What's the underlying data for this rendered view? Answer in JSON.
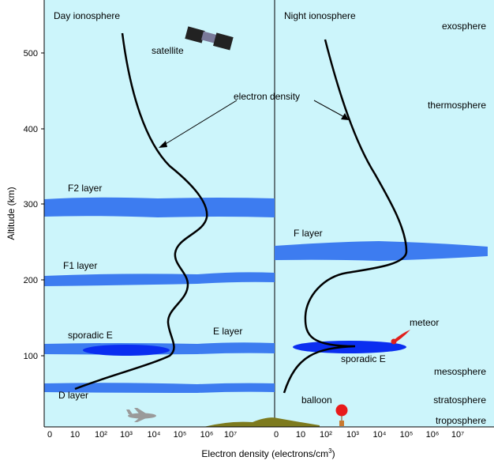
{
  "panels": {
    "day_title": "Day ionosphere",
    "night_title": "Night ionosphere"
  },
  "y_axis": {
    "label": "Altitude (km)",
    "ticks": [
      "500",
      "400",
      "300",
      "200",
      "100"
    ]
  },
  "x_axis": {
    "label": "Electron density (electrons/cm",
    "label_sup": "3",
    "label_end": ")",
    "day_ticks": [
      "0",
      "10",
      "10²",
      "10³",
      "10⁴",
      "10⁵",
      "10⁶",
      "10⁷"
    ],
    "night_ticks": [
      "0",
      "10",
      "10²",
      "10³",
      "10⁴",
      "10⁵",
      "10⁶",
      "10⁷"
    ]
  },
  "layers": {
    "f2": "F2 layer",
    "f1": "F1 layer",
    "sporadic_e_day": "sporadic E",
    "e": "E layer",
    "d": "D layer",
    "f_night": "F layer",
    "sporadic_e_night": "sporadic E"
  },
  "annotations": {
    "satellite": "satellite",
    "electron_density": "electron density",
    "meteor": "meteor",
    "balloon": "balloon"
  },
  "atmosphere": {
    "exosphere": "exosphere",
    "thermosphere": "thermosphere",
    "mesosphere": "mesosphere",
    "stratosphere": "stratosphere",
    "troposphere": "troposphere"
  },
  "colors": {
    "sky": "#ccf5fb",
    "layer_blue": "#3d7cf0",
    "sporadic_blue": "#0a2ef0",
    "ground": "#7d7a1e",
    "meteor": "#e0201c",
    "balloon": "#e81a1a"
  }
}
